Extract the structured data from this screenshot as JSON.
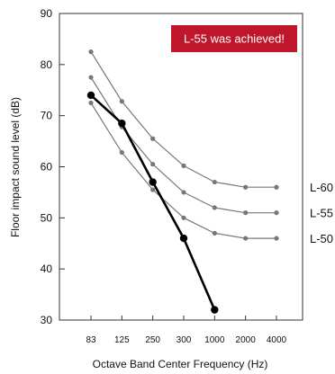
{
  "chart_data": {
    "type": "line",
    "categories": [
      "83",
      "125",
      "250",
      "300",
      "1000",
      "2000",
      "4000"
    ],
    "xlabel": "Octave Band Center Frequency (Hz)",
    "ylabel": "Floor impact sound level (dB)",
    "ylim": [
      30,
      90
    ],
    "yticks": [
      30,
      40,
      50,
      60,
      70,
      80,
      90
    ],
    "grid": false,
    "series": [
      {
        "name": "L-60",
        "values": [
          82.5,
          72.8,
          65.5,
          60.2,
          57.0,
          56.0,
          56.0
        ],
        "color": "#777777",
        "style": "reference"
      },
      {
        "name": "L-55",
        "values": [
          77.5,
          67.8,
          60.5,
          55.0,
          52.0,
          51.0,
          51.0
        ],
        "color": "#777777",
        "style": "reference"
      },
      {
        "name": "L-50",
        "values": [
          72.5,
          62.8,
          55.5,
          50.0,
          47.0,
          46.0,
          46.0
        ],
        "color": "#777777",
        "style": "reference"
      },
      {
        "name": "",
        "values": [
          74.0,
          68.5,
          57.0,
          46.0,
          32.0,
          null,
          null
        ],
        "color": "#000000",
        "style": "measured"
      }
    ],
    "annotation": {
      "text": "L-55 was achieved!",
      "background": "#C0162B",
      "color": "#ffffff"
    }
  }
}
